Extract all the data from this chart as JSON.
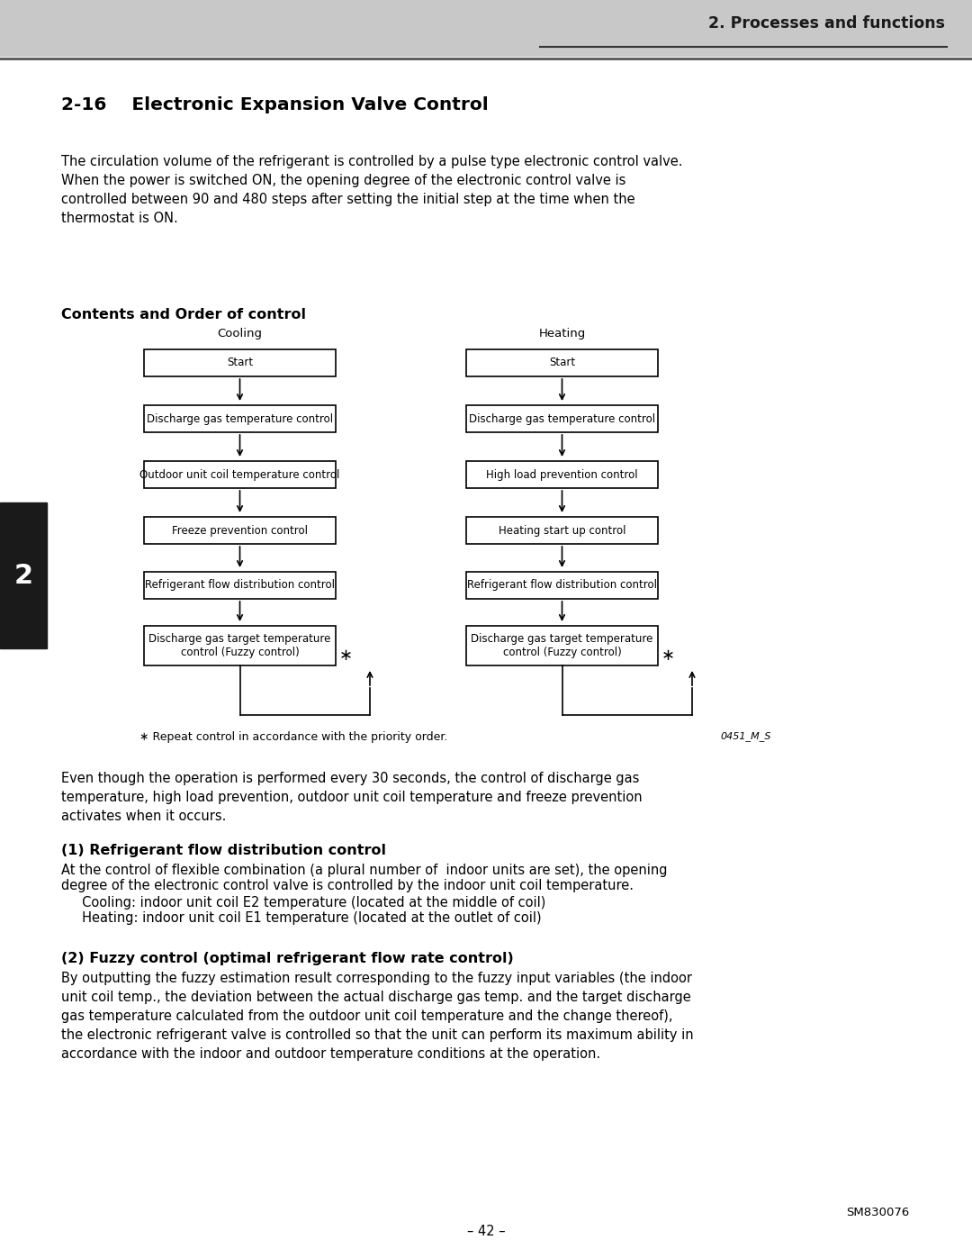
{
  "page_bg": "#ffffff",
  "header_bg": "#c8c8c8",
  "header_text": "2. Processes and functions",
  "sidebar_bg": "#1a1a1a",
  "sidebar_text": "2",
  "sidebar_text_color": "#ffffff",
  "section_title": "2-16    Electronic Expansion Valve Control",
  "intro_text": "The circulation volume of the refrigerant is controlled by a pulse type electronic control valve.\nWhen the power is switched ON, the opening degree of the electronic control valve is\ncontrolled between 90 and 480 steps after setting the initial step at the time when the\nthermostat is ON.",
  "subsection1": "Contents and Order of control",
  "cooling_label": "Cooling",
  "heating_label": "Heating",
  "cooling_boxes": [
    "Start",
    "Discharge gas temperature control",
    "Outdoor unit coil temperature control",
    "Freeze prevention control",
    "Refrigerant flow distribution control",
    "Discharge gas target temperature\ncontrol (Fuzzy control)"
  ],
  "heating_boxes": [
    "Start",
    "Discharge gas temperature control",
    "High load prevention control",
    "Heating start up control",
    "Refrigerant flow distribution control",
    "Discharge gas target temperature\ncontrol (Fuzzy control)"
  ],
  "repeat_note": "∗ Repeat control in accordance with the priority order.",
  "diagram_id": "0451_M_S",
  "body_text1": "Even though the operation is performed every 30 seconds, the control of discharge gas\ntemperature, high load prevention, outdoor unit coil temperature and freeze prevention\nactivates when it occurs.",
  "subsection2": "(1) Refrigerant flow distribution control",
  "body_text2_line1": "At the control of flexible combination (a plural number of  indoor units are set), the opening",
  "body_text2_line2": "degree of the electronic control valve is controlled by the indoor unit coil temperature.",
  "body_text2_line3": "     Cooling: indoor unit coil E2 temperature (located at the middle of coil)",
  "body_text2_line4": "     Heating: indoor unit coil E1 temperature (located at the outlet of coil)",
  "subsection3": "(2) Fuzzy control (optimal refrigerant flow rate control)",
  "body_text3": "By outputting the fuzzy estimation result corresponding to the fuzzy input variables (the indoor\nunit coil temp., the deviation between the actual discharge gas temp. and the target discharge\ngas temperature calculated from the outdoor unit coil temperature and the change thereof),\nthe electronic refrigerant valve is controlled so that the unit can perform its maximum ability in\naccordance with the indoor and outdoor temperature conditions at the operation.",
  "footer_page": "– 42 –",
  "footer_ref": "SM830076"
}
